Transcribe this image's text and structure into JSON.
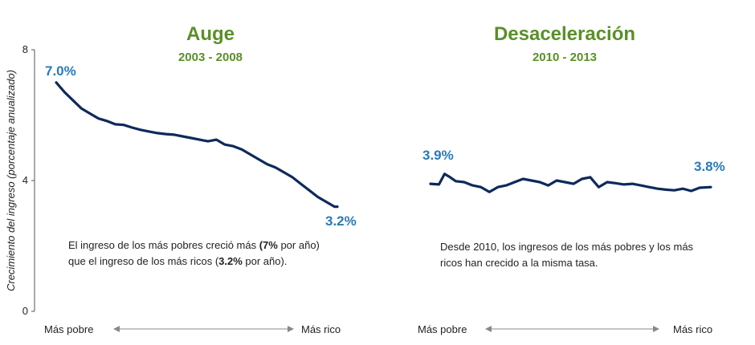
{
  "colors": {
    "title": "#5a8f29",
    "line": "#0d2a5c",
    "data_label": "#2a7ab8",
    "axis": "#555555",
    "text": "#222222"
  },
  "chart_data": [
    {
      "type": "line",
      "title": "Auge",
      "subtitle": "2003 - 2008",
      "ylabel": "Crecimiento del ingreso (porcentaje anualizado)",
      "yticks": [
        0,
        4,
        8
      ],
      "ylim": [
        0,
        8
      ],
      "xlabel_left": "Más pobre",
      "xlabel_right": "Más rico",
      "start_label": "7.0%",
      "end_label": "3.2%",
      "x": [
        0,
        3,
        6,
        9,
        12,
        15,
        18,
        21,
        24,
        27,
        30,
        33,
        36,
        39,
        42,
        45,
        48,
        51,
        54,
        57,
        60,
        63,
        66,
        69,
        72,
        75,
        78,
        81,
        84,
        87,
        90,
        93,
        96,
        99,
        100
      ],
      "values": [
        7.0,
        6.7,
        6.45,
        6.2,
        6.05,
        5.9,
        5.82,
        5.72,
        5.7,
        5.62,
        5.55,
        5.5,
        5.45,
        5.42,
        5.4,
        5.35,
        5.3,
        5.25,
        5.2,
        5.25,
        5.1,
        5.05,
        4.95,
        4.8,
        4.65,
        4.5,
        4.4,
        4.25,
        4.1,
        3.9,
        3.7,
        3.5,
        3.35,
        3.2,
        3.2
      ],
      "note": [
        "El ingreso de los más pobres creció más ",
        "(7% ",
        "por año) que el ingreso de los más ricos (",
        "3.2%",
        " por año)."
      ]
    },
    {
      "type": "line",
      "title": "Desaceleración",
      "subtitle": "2010 - 2013",
      "ylim": [
        0,
        8
      ],
      "xlabel_left": "Más pobre",
      "xlabel_right": "Más rico",
      "start_label": "3.9%",
      "end_label": "3.8%",
      "x": [
        0,
        3,
        5,
        7,
        9,
        12,
        15,
        18,
        21,
        24,
        27,
        30,
        33,
        36,
        39,
        42,
        45,
        48,
        51,
        54,
        57,
        60,
        63,
        66,
        69,
        72,
        75,
        78,
        81,
        84,
        87,
        90,
        93,
        96,
        100
      ],
      "values": [
        3.9,
        3.88,
        4.2,
        4.1,
        3.98,
        3.95,
        3.85,
        3.8,
        3.65,
        3.8,
        3.85,
        3.95,
        4.05,
        4.0,
        3.95,
        3.85,
        4.0,
        3.95,
        3.9,
        4.05,
        4.1,
        3.8,
        3.95,
        3.92,
        3.88,
        3.9,
        3.85,
        3.8,
        3.75,
        3.72,
        3.7,
        3.75,
        3.68,
        3.78,
        3.8
      ],
      "note": [
        "Desde 2010, los ingresos de los más pobres y los más ricos han crecido a la misma tasa."
      ]
    }
  ]
}
